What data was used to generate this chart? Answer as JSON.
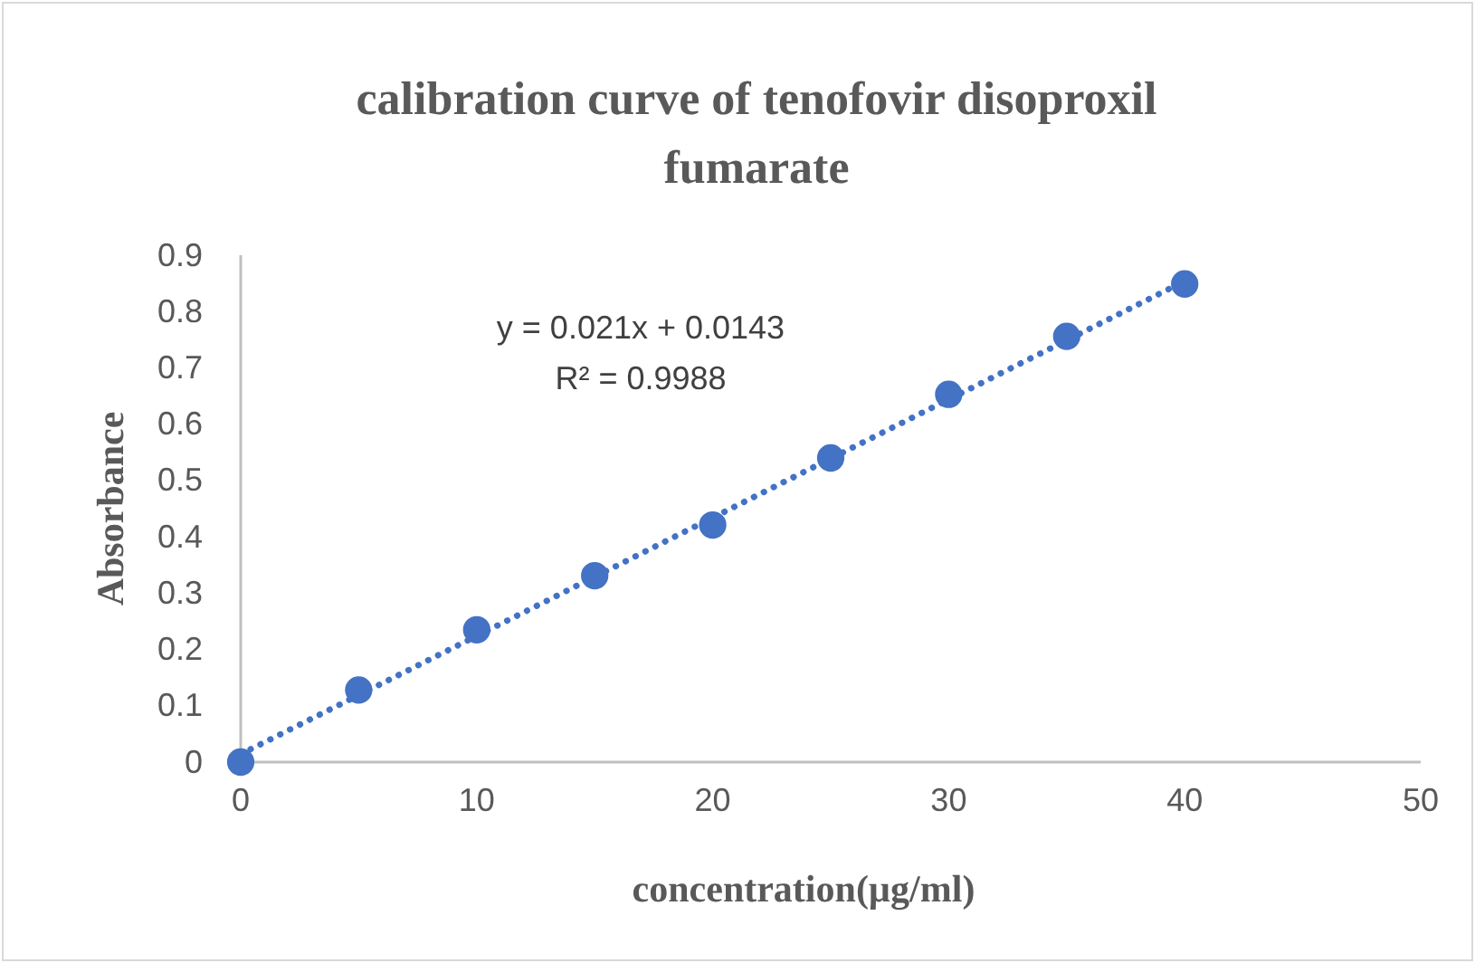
{
  "chart_data": {
    "type": "scatter",
    "title": "calibration curve of tenofovir disoproxil fumarate",
    "xlabel": "concentration(µg/ml)",
    "ylabel": "Absorbance",
    "xlim": [
      0,
      50
    ],
    "xticks": [
      0,
      10,
      20,
      30,
      40,
      50
    ],
    "ylim": [
      0,
      0.9
    ],
    "yticks": [
      0,
      0.1,
      0.2,
      0.3,
      0.4,
      0.5,
      0.6,
      0.7,
      0.8,
      0.9
    ],
    "grid": false,
    "marker": "circle",
    "series": [
      {
        "color": "#4472c4",
        "x": [
          0,
          5,
          10,
          15,
          20,
          25,
          30,
          35,
          40
        ],
        "values": [
          0,
          0.128,
          0.235,
          0.331,
          0.421,
          0.54,
          0.653,
          0.756,
          0.849
        ]
      },
      {
        "type": "line",
        "color": "#4472c4",
        "line_style": "dotted",
        "marker": "none",
        "x": [
          0,
          40
        ],
        "values": [
          0.014,
          0.854
        ]
      }
    ],
    "annotations": [
      "y = 0.021x + 0.0143\nR² = 0.9988"
    ]
  }
}
